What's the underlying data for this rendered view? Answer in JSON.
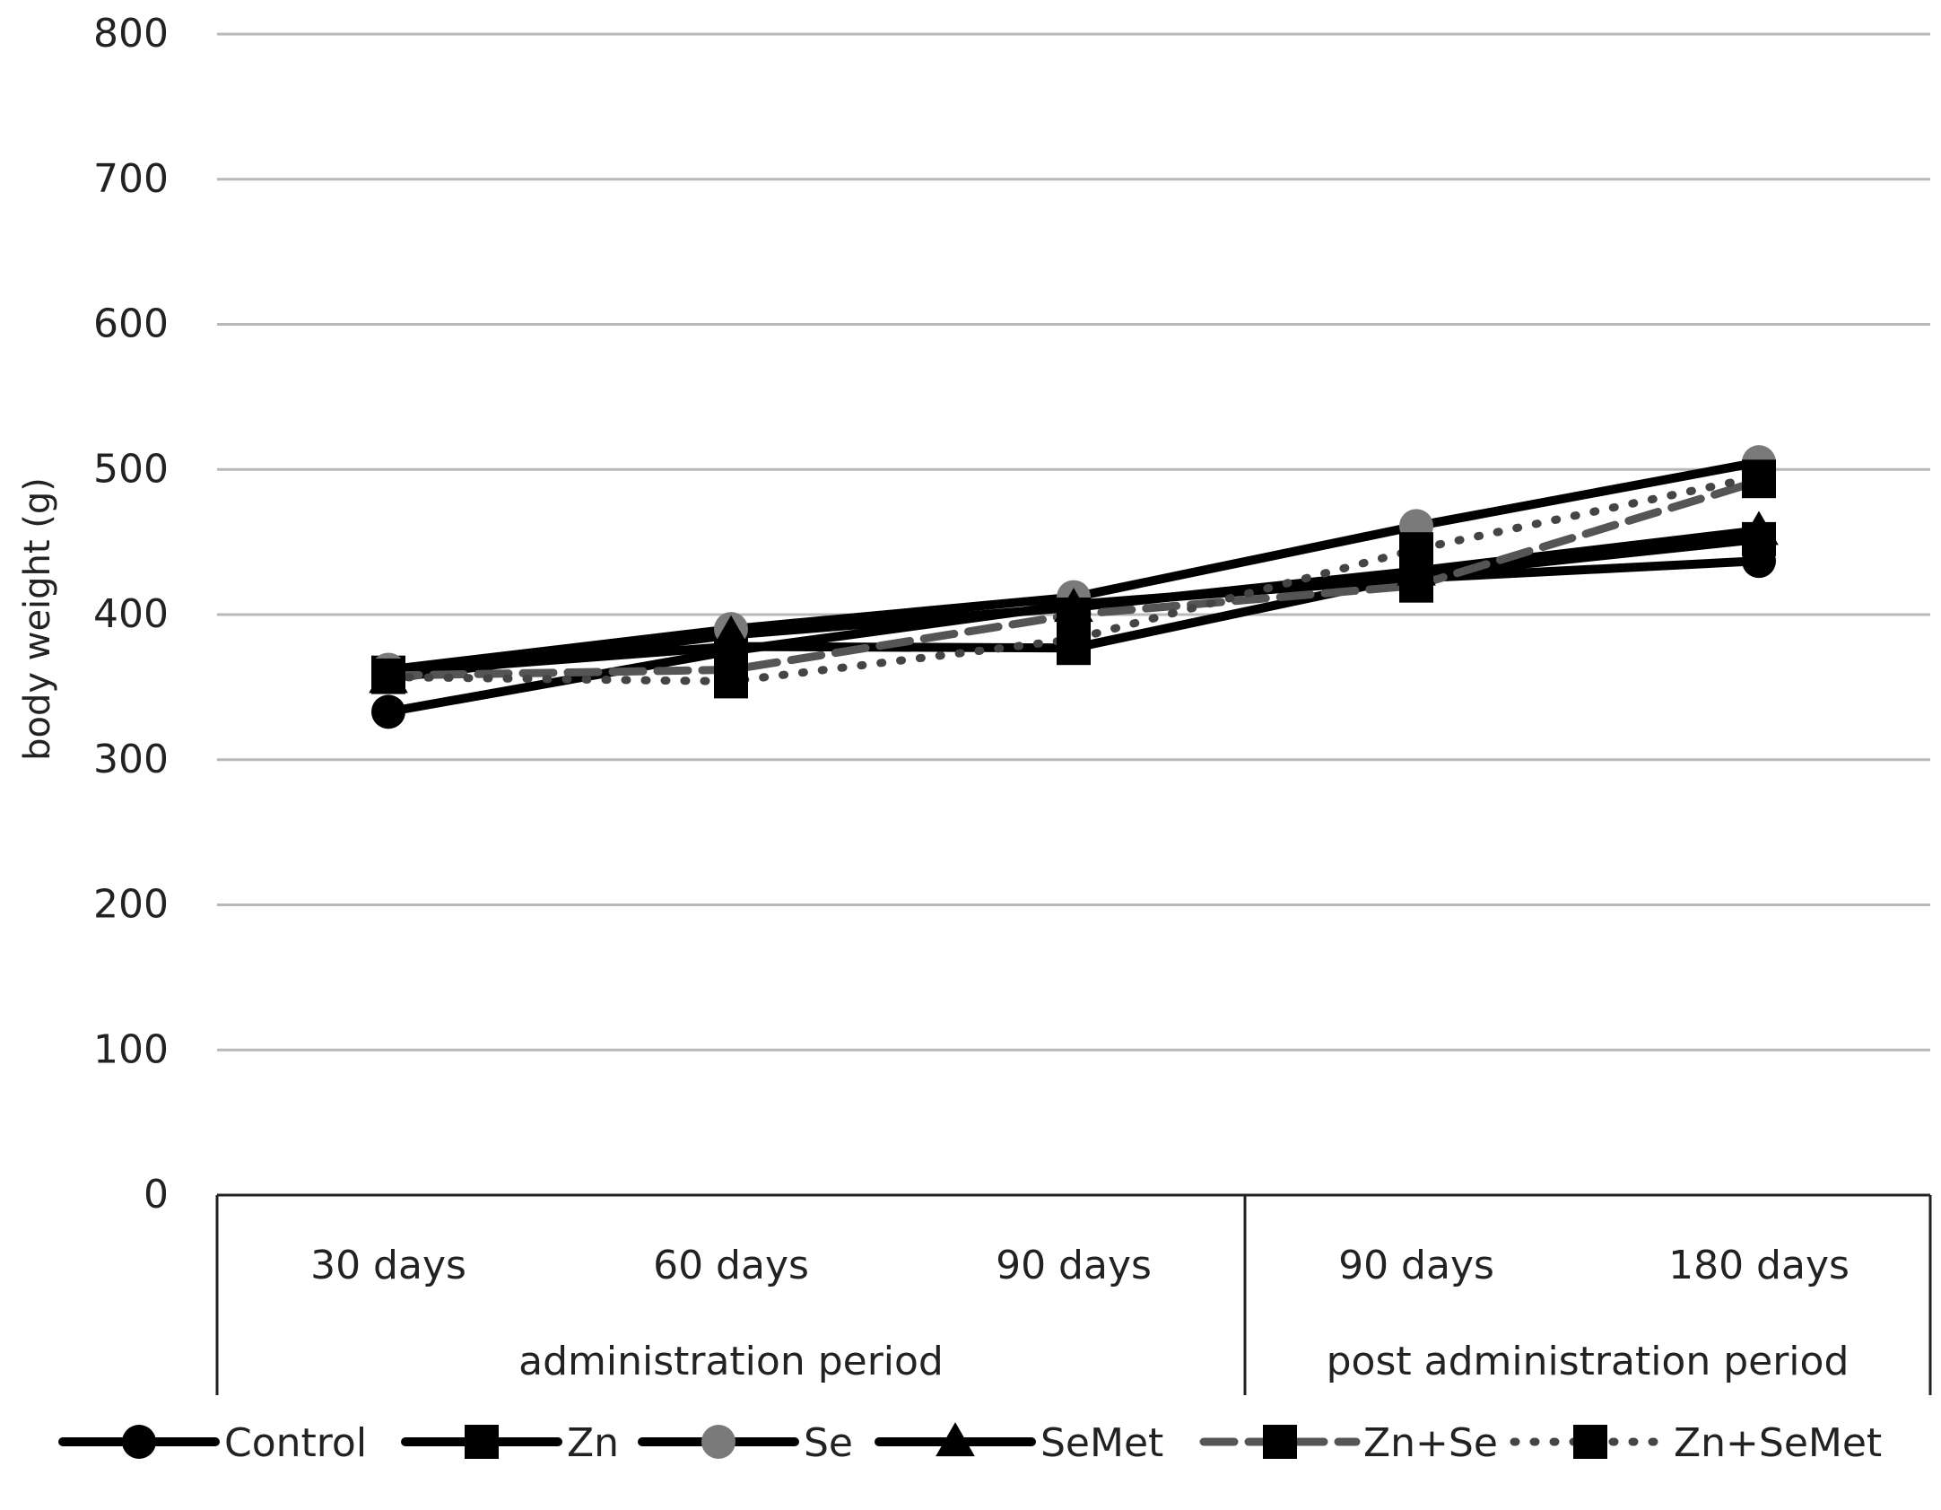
{
  "chart_data": {
    "type": "line",
    "title": "",
    "ylabel": "body weight (g)",
    "xlabel": "",
    "ylim": [
      0,
      800
    ],
    "yticks": [
      0,
      100,
      200,
      300,
      400,
      500,
      600,
      700,
      800
    ],
    "categories": [
      "30 days",
      "60 days",
      "90 days",
      "90 days",
      "180 days"
    ],
    "groups": [
      {
        "label": "administration period",
        "span": [
          0,
          2
        ]
      },
      {
        "label": "post administration period",
        "span": [
          3,
          4
        ]
      }
    ],
    "grid": true,
    "legend_position": "bottom",
    "series": [
      {
        "name": "Control",
        "marker": "circle",
        "line": "solid",
        "color": "#000000",
        "values": [
          333,
          375,
          407,
          425,
          437
        ]
      },
      {
        "name": "Zn",
        "marker": "square",
        "line": "solid",
        "color": "#000000",
        "values": [
          360,
          378,
          377,
          427,
          452
        ]
      },
      {
        "name": "Se",
        "marker": "circle",
        "line": "solid",
        "color": "#000000",
        "marker_color": "#7a7a7a",
        "values": [
          362,
          390,
          412,
          461,
          505
        ]
      },
      {
        "name": "SeMet",
        "marker": "triangle",
        "line": "solid",
        "color": "#000000",
        "values": [
          356,
          386,
          405,
          430,
          458
        ]
      },
      {
        "name": "Zn+Se",
        "marker": "square",
        "line": "dashed",
        "color": "#555555",
        "marker_color": "#000000",
        "values": [
          358,
          362,
          400,
          420,
          492
        ]
      },
      {
        "name": "Zn+SeMet",
        "marker": "square",
        "line": "dotted",
        "color": "#444444",
        "marker_color": "#000000",
        "values": [
          357,
          354,
          383,
          445,
          495
        ]
      }
    ]
  }
}
